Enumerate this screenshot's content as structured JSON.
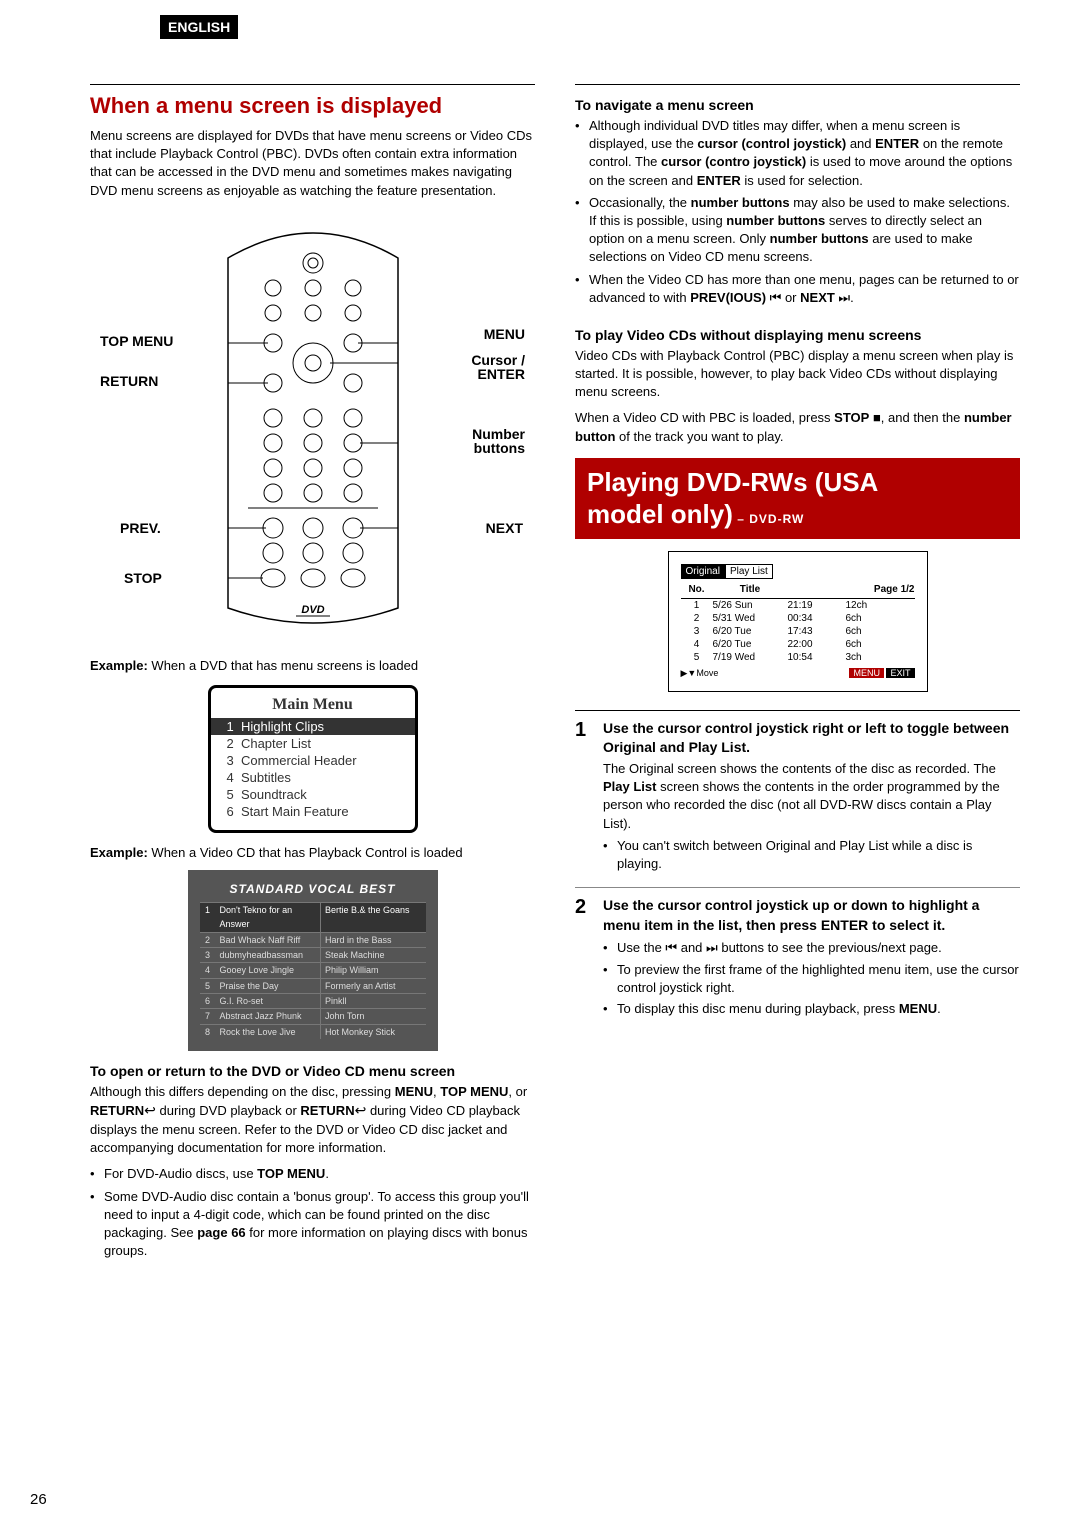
{
  "lang_badge": "ENGLISH",
  "page_number": "26",
  "left": {
    "section_title": "When a menu screen is displayed",
    "intro": "Menu screens are displayed for DVDs that have menu screens or Video CDs that include Playback Control (PBC). DVDs often contain extra information that can be accessed in the DVD menu and sometimes makes navigating DVD menu screens as enjoyable as watching the feature presentation.",
    "remote_labels": {
      "top_menu": "TOP MENU",
      "return": "RETURN",
      "prev": "PREV.",
      "stop": "STOP",
      "menu": "MENU",
      "cursor": "Cursor /",
      "enter": "ENTER",
      "number": "Number",
      "buttons": "buttons",
      "next": "NEXT"
    },
    "example1_prefix": "Example:",
    "example1_text": " When a DVD that has menu screens is loaded",
    "main_menu": {
      "title": "Main Menu",
      "items": [
        {
          "n": "1",
          "label": "Highlight Clips",
          "hl": true
        },
        {
          "n": "2",
          "label": "Chapter List",
          "hl": false
        },
        {
          "n": "3",
          "label": "Commercial Header",
          "hl": false
        },
        {
          "n": "4",
          "label": "Subtitles",
          "hl": false
        },
        {
          "n": "5",
          "label": "Soundtrack",
          "hl": false
        },
        {
          "n": "6",
          "label": "Start Main Feature",
          "hl": false
        }
      ]
    },
    "example2_prefix": "Example:",
    "example2_text": " When a Video CD that has Playback Control is loaded",
    "svb": {
      "title": "STANDARD VOCAL BEST",
      "rows": [
        {
          "n": "1",
          "a": "Don't Tekno for an Answer",
          "b": "Bertie B.& the Goans",
          "hl": true
        },
        {
          "n": "2",
          "a": "Bad Whack Naff Riff",
          "b": "Hard in the Bass",
          "hl": false
        },
        {
          "n": "3",
          "a": "dubmyheadbassman",
          "b": "Steak Machine",
          "hl": false
        },
        {
          "n": "4",
          "a": "Gooey Love Jingle",
          "b": "Philip William",
          "hl": false
        },
        {
          "n": "5",
          "a": "Praise the Day",
          "b": "Formerly an Artist",
          "hl": false
        },
        {
          "n": "6",
          "a": "G.I. Ro-set",
          "b": "Pinkll",
          "hl": false
        },
        {
          "n": "7",
          "a": "Abstract Jazz Phunk",
          "b": "John Torn",
          "hl": false
        },
        {
          "n": "8",
          "a": "Rock the Love Jive",
          "b": "Hot Monkey Stick",
          "hl": false
        }
      ]
    },
    "open_return": {
      "heading": "To open or return to the DVD or Video CD menu screen",
      "text_pre": "Although this differs depending on the disc, pressing ",
      "b_menu": "MENU",
      "text_mid1": ", ",
      "b_topmenu": "TOP MENU",
      "text_mid2": ", or ",
      "b_return": "RETURN",
      "text_mid3": " during DVD playback or ",
      "b_return2": "RETURN",
      "text_after": " during Video CD playback displays the menu screen. Refer to the DVD or Video CD disc jacket and accompanying documentation for more information.",
      "bullets": [
        "For DVD-Audio discs, use <b>TOP MENU</b>.",
        "Some DVD-Audio disc contain a 'bonus group'. To access this group you'll need to input a 4-digit code, which can be found printed on the disc packaging. See <b>page 66</b> for more information on playing discs with bonus groups."
      ]
    }
  },
  "right": {
    "nav": {
      "heading": "To navigate a menu screen",
      "bullets": [
        "Although individual DVD titles may differ, when a menu screen is displayed, use the <b>cursor (control joystick)</b> and <b>ENTER</b> on the remote control. The <b>cursor (contro joystick)</b> is used to move around the options on the screen and <b>ENTER</b> is used for selection.",
        "Occasionally, the <b>number buttons</b> may also be used to make selections. If this is possible, using <b>number buttons</b> serves to directly select an option on a menu screen. Only <b>number buttons</b> are used to make selections on Video CD menu screens.",
        "When the Video CD has more than one menu, pages can be returned to or advanced to with <b>PREV(IOUS)</b> ⏮ or <b>NEXT</b> ⏭."
      ]
    },
    "play_vcd": {
      "heading": "To play Video CDs without displaying menu screens",
      "p1": "Video CDs with Playback Control (PBC) display a menu screen when play is started. It is possible, however, to play back Video CDs without displaying menu screens.",
      "p2_pre": "When a Video CD with PBC is loaded, press ",
      "b_stop": "STOP",
      "p2_mid": " ■, and then the ",
      "b_nb": "number button",
      "p2_after": " of the track you want to play."
    },
    "red_bar": {
      "l1": "Playing DVD-RWs (USA",
      "l2": "model only)",
      "sub": " – DVD-RW"
    },
    "rw_box": {
      "tab1": "Original",
      "tab2": "Play List",
      "head": {
        "no": "No.",
        "title": "Title",
        "page": "Page 1/2"
      },
      "rows": [
        {
          "no": "1",
          "date": "5/26 Sun",
          "time": "21:19",
          "ch": "12ch"
        },
        {
          "no": "2",
          "date": "5/31 Wed",
          "time": "00:34",
          "ch": "6ch"
        },
        {
          "no": "3",
          "date": "6/20 Tue",
          "time": "17:43",
          "ch": "6ch"
        },
        {
          "no": "4",
          "date": "6/20 Tue",
          "time": "22:00",
          "ch": "6ch"
        },
        {
          "no": "5",
          "date": "7/19 Wed",
          "time": "10:54",
          "ch": "3ch"
        }
      ],
      "move": "▶▼Move",
      "menu": "MENU",
      "exit": "EXIT"
    },
    "steps": [
      {
        "num": "1",
        "title": "Use the cursor control joystick right or left  to toggle between Original and Play List.",
        "body": "The Original screen shows the contents of the disc as recorded. The <b>Play List</b> screen shows the contents in the order programmed by the person who recorded the disc (not all DVD-RW discs contain a Play List).",
        "bullets": [
          "You can't switch between Original and Play List while a disc is playing."
        ]
      },
      {
        "num": "2",
        "title": "Use the cursor control joystick up or down to highlight a menu item in the list, then press ENTER to select it.",
        "body": "",
        "bullets": [
          "Use the ⏮ and ⏭ buttons to see the previous/next page.",
          "To preview the first frame of the highlighted menu item, use the cursor control joystick right.",
          "To display this disc menu during playback, press <b>MENU</b>."
        ]
      }
    ]
  }
}
